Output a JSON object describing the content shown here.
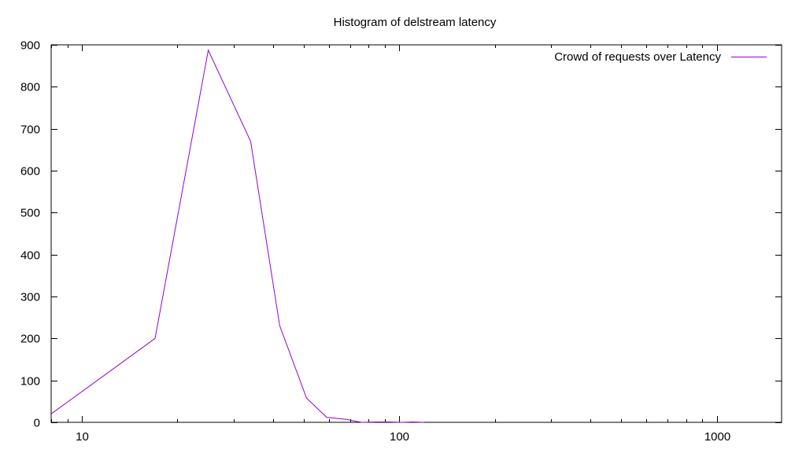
{
  "chart_data": {
    "type": "line",
    "title": "Histogram of delstream latency",
    "xlabel": "",
    "ylabel": "",
    "x_scale": "log",
    "xlim": [
      8,
      1600
    ],
    "ylim": [
      0,
      900
    ],
    "grid": false,
    "legend_position": "top-right",
    "x_tick_labels": [
      "10",
      "100",
      "1000"
    ],
    "x_major_ticks": [
      10,
      100,
      1000
    ],
    "y_tick_labels": [
      "0",
      "100",
      "200",
      "300",
      "400",
      "500",
      "600",
      "700",
      "800",
      "900"
    ],
    "y_ticks": [
      0,
      100,
      200,
      300,
      400,
      500,
      600,
      700,
      800,
      900
    ],
    "series": [
      {
        "name": "Crowd of requests over Latency",
        "color": "#9400d3",
        "x": [
          8,
          17,
          25,
          34,
          42,
          51,
          59,
          68,
          76,
          85,
          93,
          102,
          110,
          119
        ],
        "y": [
          20,
          200,
          887,
          670,
          230,
          58,
          12,
          7,
          0,
          1,
          1,
          0,
          1,
          0
        ]
      }
    ]
  }
}
